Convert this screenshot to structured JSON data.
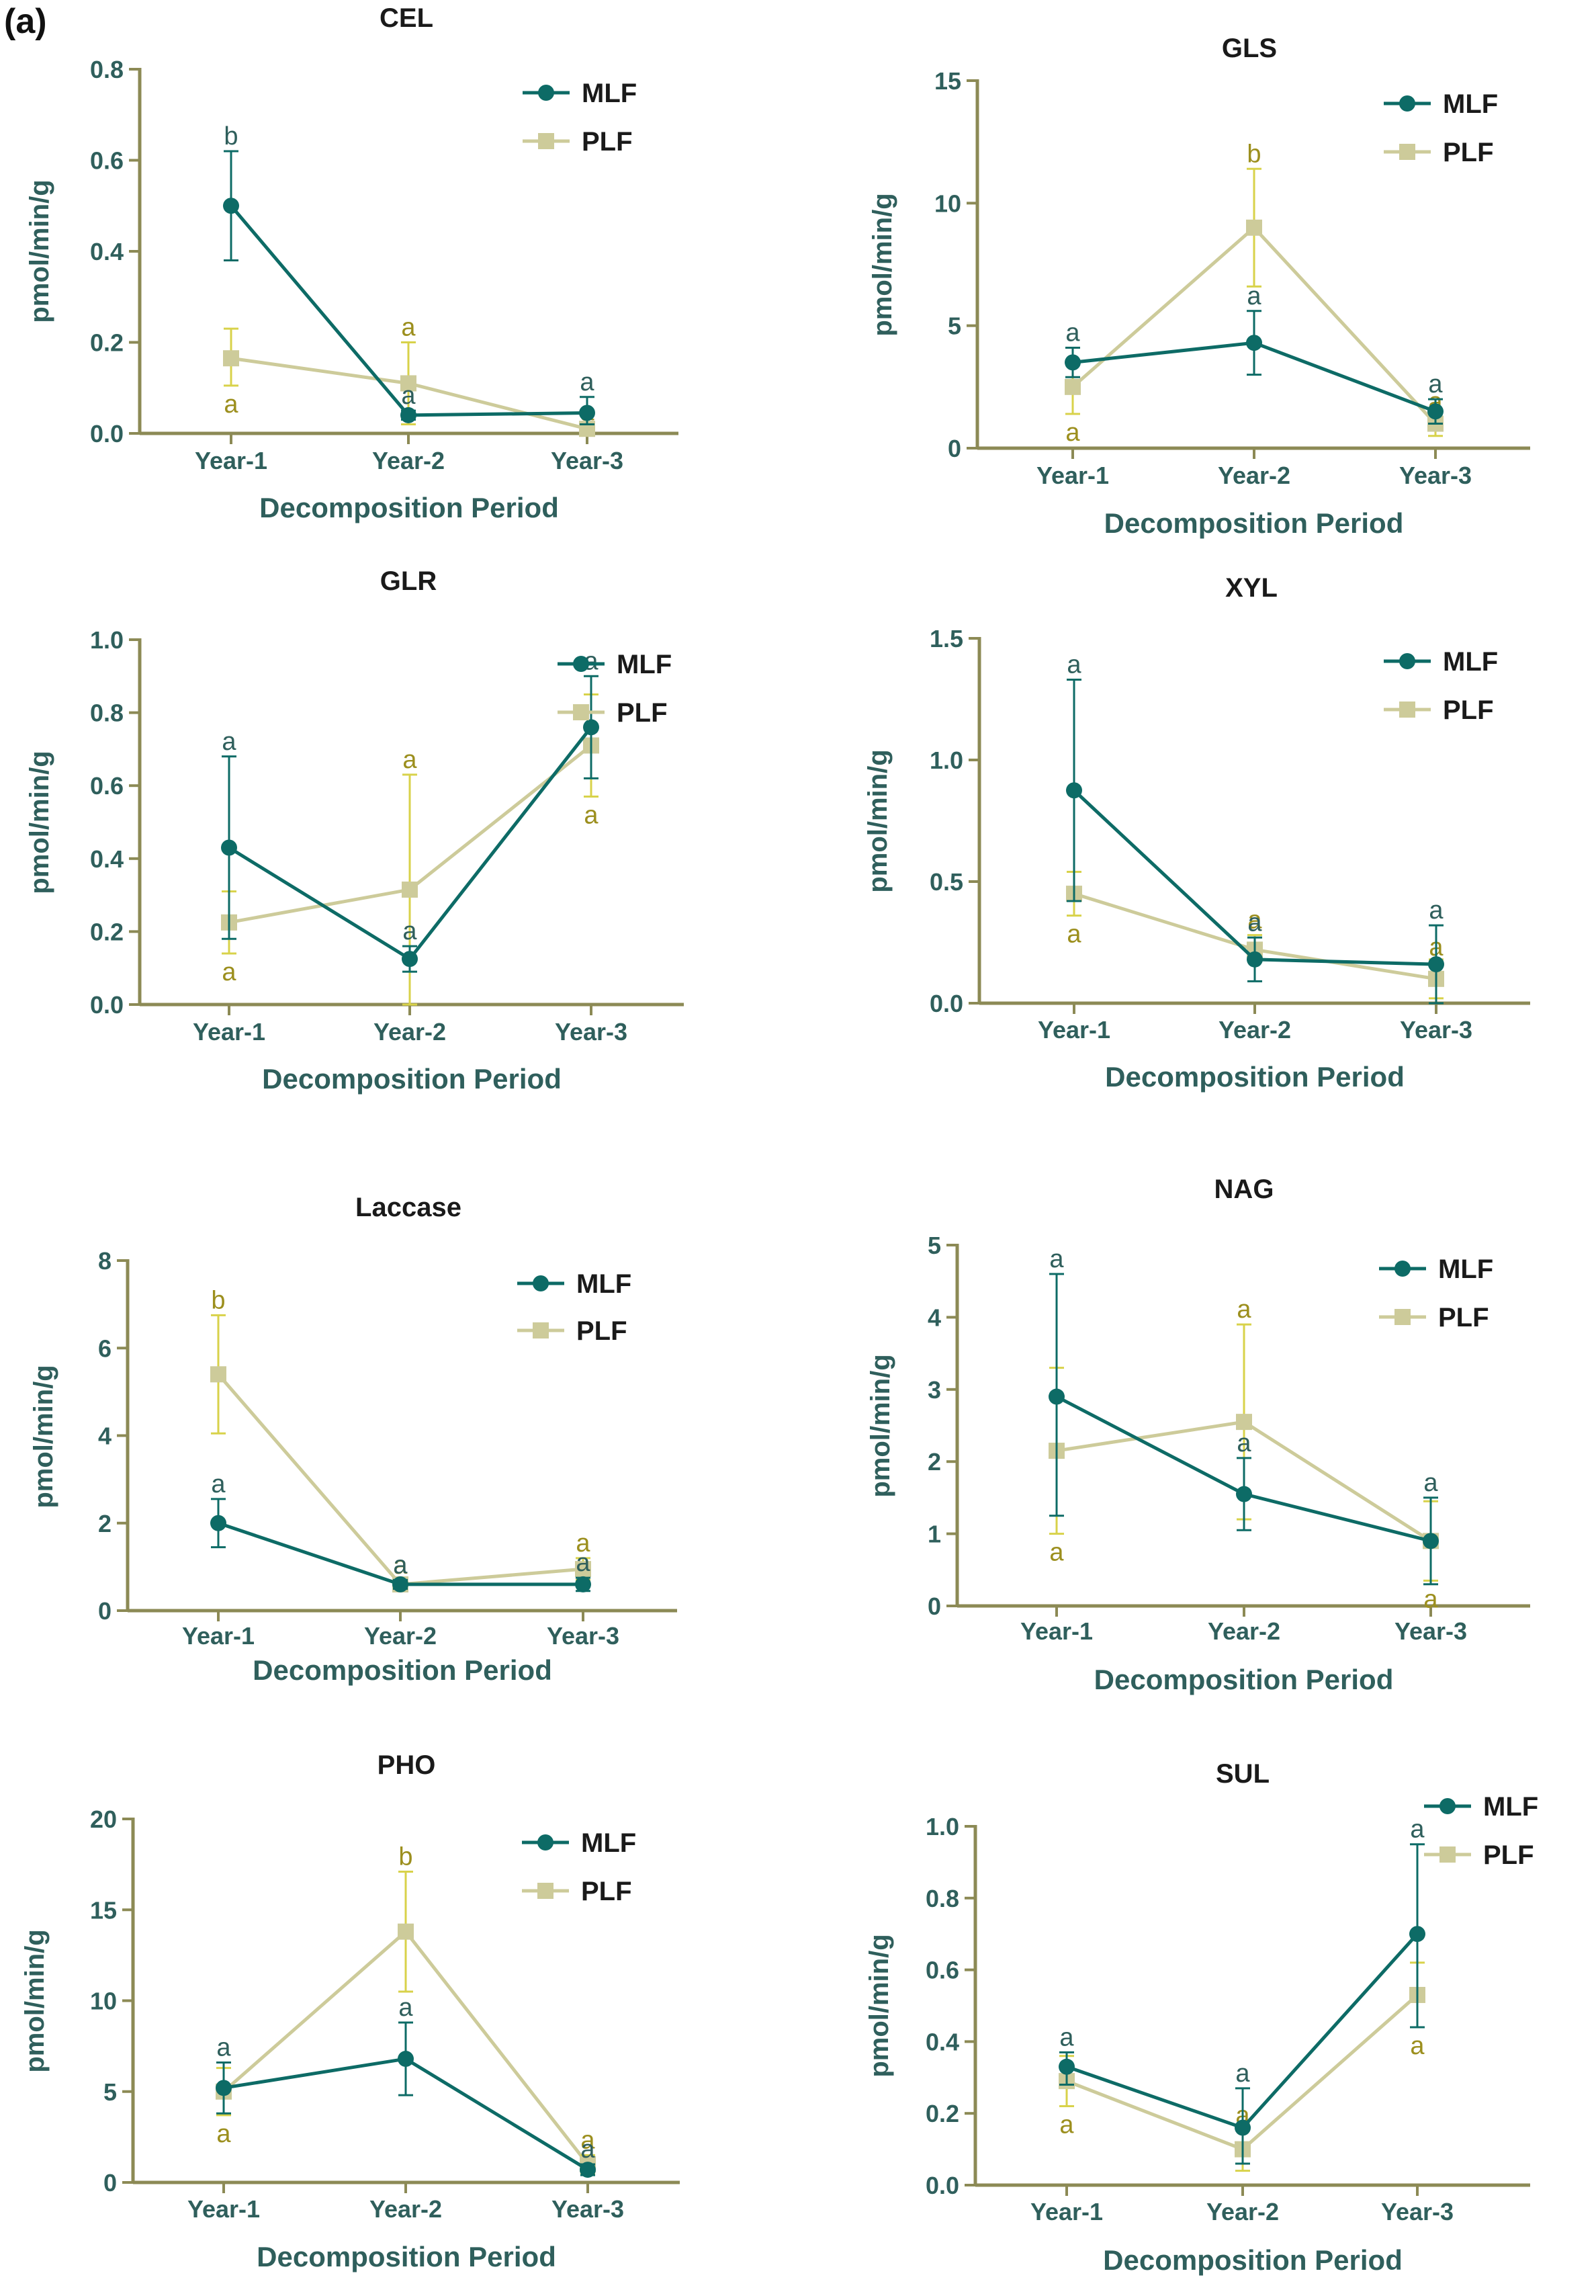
{
  "panel_label": "(a)",
  "colors": {
    "mlf": "#0d6b66",
    "plf": "#cdcb9a",
    "axis": "#8c8a55",
    "text": "#2f5f5c",
    "title": "#1a1a1a",
    "plf_err": "#d8d24a",
    "plf_letter": "#9c8f1e"
  },
  "legend": {
    "mlf": "MLF",
    "plf": "PLF"
  },
  "chart_data": [
    {
      "type": "line",
      "title": "CEL",
      "xlabel": "Decomposition Period",
      "ylabel": "pmol/min/g",
      "categories": [
        "Year-1",
        "Year-2",
        "Year-3"
      ],
      "ylim": [
        0,
        0.8
      ],
      "yticks": [
        "0.0",
        "0.2",
        "0.4",
        "0.6",
        "0.8"
      ],
      "series": [
        {
          "name": "MLF",
          "values": [
            0.5,
            0.04,
            0.045
          ],
          "err_low": [
            0.38,
            0.03,
            0.02
          ],
          "err_high": [
            0.62,
            0.05,
            0.08
          ],
          "letters": [
            "b",
            "a",
            "a"
          ]
        },
        {
          "name": "PLF",
          "values": [
            0.165,
            0.11,
            0.01
          ],
          "err_low": [
            0.105,
            0.02,
            0.005
          ],
          "err_high": [
            0.23,
            0.2,
            0.02
          ],
          "letters": [
            "a",
            "a",
            "a"
          ]
        }
      ]
    },
    {
      "type": "line",
      "title": "GLS",
      "xlabel": "Decomposition Period",
      "ylabel": "pmol/min/g",
      "categories": [
        "Year-1",
        "Year-2",
        "Year-3"
      ],
      "ylim": [
        0,
        15
      ],
      "yticks": [
        "0",
        "5",
        "10",
        "15"
      ],
      "series": [
        {
          "name": "MLF",
          "values": [
            3.5,
            4.3,
            1.5
          ],
          "err_low": [
            2.9,
            3.0,
            1.0
          ],
          "err_high": [
            4.1,
            5.6,
            2.0
          ],
          "letters": [
            "a",
            "a",
            "a"
          ]
        },
        {
          "name": "PLF",
          "values": [
            2.5,
            9.0,
            1.0
          ],
          "err_low": [
            1.4,
            6.6,
            0.5
          ],
          "err_high": [
            3.6,
            11.4,
            1.4
          ],
          "letters": [
            "a",
            "b",
            "a"
          ]
        }
      ]
    },
    {
      "type": "line",
      "title": "GLR",
      "xlabel": "Decomposition Period",
      "ylabel": "pmol/min/g",
      "categories": [
        "Year-1",
        "Year-2",
        "Year-3"
      ],
      "ylim": [
        0,
        1.0
      ],
      "yticks": [
        "0.0",
        "0.2",
        "0.4",
        "0.6",
        "0.8",
        "1.0"
      ],
      "series": [
        {
          "name": "MLF",
          "values": [
            0.43,
            0.125,
            0.76
          ],
          "err_low": [
            0.18,
            0.09,
            0.62
          ],
          "err_high": [
            0.68,
            0.16,
            0.9
          ],
          "letters": [
            "a",
            "a",
            "a"
          ]
        },
        {
          "name": "PLF",
          "values": [
            0.225,
            0.315,
            0.71
          ],
          "err_low": [
            0.14,
            0.0,
            0.57
          ],
          "err_high": [
            0.31,
            0.63,
            0.85
          ],
          "letters": [
            "a",
            "a",
            "a"
          ]
        }
      ]
    },
    {
      "type": "line",
      "title": "XYL",
      "xlabel": "Decomposition Period",
      "ylabel": "pmol/min/g",
      "categories": [
        "Year-1",
        "Year-2",
        "Year-3"
      ],
      "ylim": [
        0,
        1.5
      ],
      "yticks": [
        "0.0",
        "0.5",
        "1.0",
        "1.5"
      ],
      "series": [
        {
          "name": "MLF",
          "values": [
            0.875,
            0.18,
            0.16
          ],
          "err_low": [
            0.42,
            0.09,
            0.0
          ],
          "err_high": [
            1.33,
            0.27,
            0.32
          ],
          "letters": [
            "a",
            "a",
            "a"
          ]
        },
        {
          "name": "PLF",
          "values": [
            0.45,
            0.22,
            0.1
          ],
          "err_low": [
            0.36,
            0.17,
            0.02
          ],
          "err_high": [
            0.54,
            0.28,
            0.18
          ],
          "letters": [
            "a",
            "a",
            "a"
          ]
        }
      ]
    },
    {
      "type": "line",
      "title": "Laccase",
      "xlabel": "Decomposition Period",
      "ylabel": "pmol/min/g",
      "categories": [
        "Year-1",
        "Year-2",
        "Year-3"
      ],
      "ylim": [
        0,
        8
      ],
      "yticks": [
        "0",
        "2",
        "4",
        "6",
        "8"
      ],
      "series": [
        {
          "name": "MLF",
          "values": [
            2.0,
            0.6,
            0.6
          ],
          "err_low": [
            1.45,
            0.5,
            0.45
          ],
          "err_high": [
            2.55,
            0.7,
            0.75
          ],
          "letters": [
            "a",
            "a",
            "a"
          ]
        },
        {
          "name": "PLF",
          "values": [
            5.4,
            0.6,
            0.95
          ],
          "err_low": [
            4.05,
            0.45,
            0.7
          ],
          "err_high": [
            6.75,
            0.75,
            1.2
          ],
          "letters": [
            "b",
            "a",
            "a"
          ]
        }
      ]
    },
    {
      "type": "line",
      "title": "NAG",
      "xlabel": "Decomposition Period",
      "ylabel": "pmol/min/g",
      "categories": [
        "Year-1",
        "Year-2",
        "Year-3"
      ],
      "ylim": [
        0,
        5
      ],
      "yticks": [
        "0",
        "1",
        "2",
        "3",
        "4",
        "5"
      ],
      "series": [
        {
          "name": "MLF",
          "values": [
            2.9,
            1.55,
            0.9
          ],
          "err_low": [
            1.25,
            1.05,
            0.3
          ],
          "err_high": [
            4.6,
            2.05,
            1.5
          ],
          "letters": [
            "a",
            "a",
            "a"
          ]
        },
        {
          "name": "PLF",
          "values": [
            2.15,
            2.55,
            0.9
          ],
          "err_low": [
            1.0,
            1.2,
            0.35
          ],
          "err_high": [
            3.3,
            3.9,
            1.45
          ],
          "letters": [
            "a",
            "a",
            "a"
          ]
        }
      ]
    },
    {
      "type": "line",
      "title": "PHO",
      "xlabel": "Decomposition Period",
      "ylabel": "pmol/min/g",
      "categories": [
        "Year-1",
        "Year-2",
        "Year-3"
      ],
      "ylim": [
        0,
        20
      ],
      "yticks": [
        "0",
        "5",
        "10",
        "15",
        "20"
      ],
      "series": [
        {
          "name": "MLF",
          "values": [
            5.2,
            6.8,
            0.7
          ],
          "err_low": [
            3.8,
            4.8,
            0.4
          ],
          "err_high": [
            6.6,
            8.8,
            1.0
          ],
          "letters": [
            "a",
            "a",
            "a"
          ]
        },
        {
          "name": "PLF",
          "values": [
            5.0,
            13.8,
            1.0
          ],
          "err_low": [
            3.7,
            10.5,
            0.5
          ],
          "err_high": [
            6.3,
            17.1,
            1.5
          ],
          "letters": [
            "a",
            "b",
            "a"
          ]
        }
      ]
    },
    {
      "type": "line",
      "title": "SUL",
      "xlabel": "Decomposition Period",
      "ylabel": "pmol/min/g",
      "categories": [
        "Year-1",
        "Year-2",
        "Year-3"
      ],
      "ylim": [
        0,
        1.0
      ],
      "yticks": [
        "0.0",
        "0.2",
        "0.4",
        "0.6",
        "0.8",
        "1.0"
      ],
      "series": [
        {
          "name": "MLF",
          "values": [
            0.33,
            0.16,
            0.7
          ],
          "err_low": [
            0.28,
            0.06,
            0.44
          ],
          "err_high": [
            0.37,
            0.27,
            0.95
          ],
          "letters": [
            "a",
            "a",
            "a"
          ]
        },
        {
          "name": "PLF",
          "values": [
            0.29,
            0.1,
            0.53
          ],
          "err_low": [
            0.22,
            0.04,
            0.44
          ],
          "err_high": [
            0.36,
            0.16,
            0.62
          ],
          "letters": [
            "a",
            "a",
            "a"
          ]
        }
      ]
    }
  ]
}
